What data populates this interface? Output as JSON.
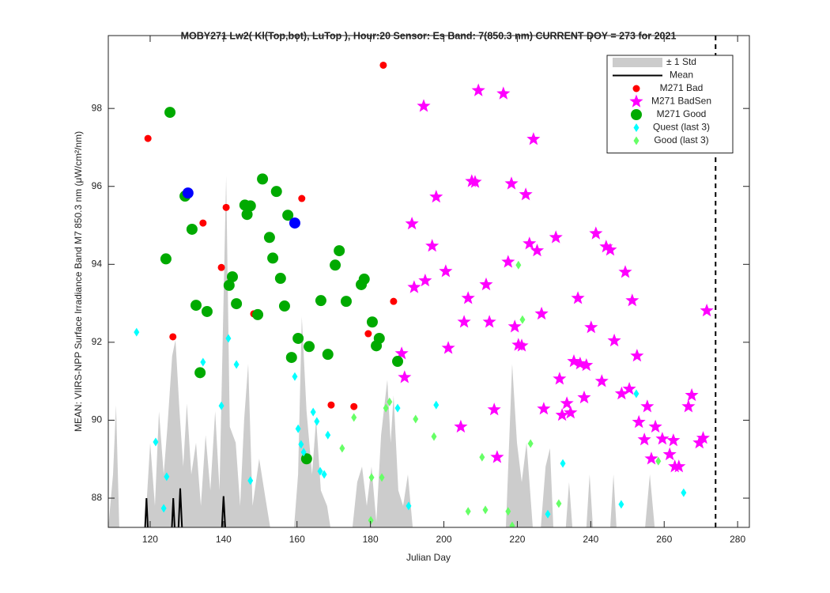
{
  "chart_data": {
    "type": "scatter",
    "title": "MOBY271   Lw2( Kl(Top,bot), LuTop ),   Hour:20 Sensor: Es Band: 7(850.3 nm)   CURRENT DOY = 273 for 2021",
    "x_label": "Julian Day",
    "y_label": "MEAN: VIIRS-NPP Surface Irradiance Band M7 850.3 nm (μW/cm²/nm)",
    "xlim": [
      108.6,
      283.2
    ],
    "ylim": [
      87.25,
      99.87
    ],
    "xticks": [
      120,
      140,
      160,
      180,
      200,
      220,
      240,
      260,
      280
    ],
    "yticks": [
      88,
      90,
      92,
      94,
      96,
      98
    ],
    "vline": 274,
    "legend": "upper right",
    "grid": false,
    "series": [
      {
        "name": "± 1 Std",
        "color": "#cccccc",
        "marker": "area",
        "x": [
          108.6,
          109.9,
          110.7,
          111.6,
          118.5,
          119.1,
          120.0,
          121.3,
          122.4,
          123.7,
          124.7,
          126.0,
          126.9,
          128.0,
          129.0,
          130.0,
          131.2,
          132.5,
          133.8,
          135.1,
          136.4,
          137.7,
          138.9,
          140.7,
          141.7,
          143.3,
          144.5,
          145.6,
          146.7,
          147.9,
          149.7,
          151.4,
          152.7,
          159.2,
          160.3,
          161.3,
          162.6,
          164.1,
          165.2,
          166.5,
          168.2,
          169.1,
          175.1,
          176.4,
          177.7,
          179.0,
          180.3,
          181.6,
          182.9,
          184.6,
          185.5,
          186.3,
          187.6,
          188.9,
          190.2,
          191.5,
          216.9,
          218.6,
          219.9,
          221.2,
          222.5,
          224.2,
          226.4,
          227.7,
          228.9,
          229.8,
          233.2,
          234.1,
          235.0,
          238.8,
          239.7,
          240.6,
          245.3,
          246.2,
          247.0,
          254.8,
          256.1,
          257.4
        ],
        "values": [
          87.25,
          88.61,
          90.39,
          87.25,
          87.25,
          88.0,
          89.42,
          87.8,
          90.23,
          88.61,
          89.83,
          91.65,
          92.06,
          90.23,
          88.81,
          90.43,
          88.61,
          89.42,
          87.8,
          89.62,
          88.2,
          90.23,
          88.2,
          96.27,
          89.83,
          89.42,
          87.8,
          90.03,
          91.45,
          87.8,
          89.01,
          88.0,
          87.25,
          87.25,
          88.61,
          92.66,
          90.23,
          88.61,
          90.03,
          88.2,
          87.8,
          87.25,
          87.25,
          88.41,
          88.81,
          87.8,
          88.81,
          87.39,
          89.62,
          91.04,
          89.42,
          90.64,
          88.2,
          87.8,
          88.61,
          87.25,
          87.25,
          91.45,
          89.42,
          88.41,
          89.42,
          87.25,
          87.25,
          88.81,
          89.28,
          87.25,
          87.25,
          88.41,
          87.25,
          87.25,
          88.61,
          87.25,
          87.25,
          88.61,
          87.25,
          87.25,
          88.61,
          87.25
        ]
      },
      {
        "name": "Mean",
        "color": "#000000",
        "marker": "line",
        "x": [
          118.5,
          119.0,
          119.5,
          null,
          125.8,
          126.3,
          126.8,
          null,
          127.6,
          128.2,
          128.8,
          null,
          139.4,
          140.0,
          140.6
        ],
        "values": [
          87.0,
          88.0,
          87.0,
          null,
          87.0,
          88.0,
          87.0,
          null,
          87.0,
          88.25,
          87.0,
          null,
          87.0,
          88.05,
          87.0
        ]
      },
      {
        "name": "M271 Bad",
        "color": "#ff0000",
        "marker": "dot",
        "x": [
          119.4,
          140.7,
          134.4,
          139.4,
          126.2,
          148.2,
          161.3,
          169.3,
          175.5,
          179.4,
          186.3,
          183.5
        ],
        "values": [
          97.23,
          95.46,
          95.06,
          93.92,
          92.14,
          92.73,
          95.69,
          90.39,
          90.35,
          92.22,
          93.05,
          99.11
        ]
      },
      {
        "name": "M271 BadSen",
        "color": "#ff00ff",
        "marker": "star",
        "x": [
          194.5,
          209.4,
          216.2,
          207.6,
          208.5,
          218.4,
          222.3,
          224.4,
          197.9,
          191.3,
          196.8,
          194.9,
          191.9,
          200.5,
          206.6,
          211.5,
          217.5,
          223.3,
          225.4,
          230.5,
          241.4,
          244.2,
          245.3,
          249.4,
          251.3,
          236.5,
          226.6,
          212.4,
          205.5,
          219.3,
          220.3,
          221.2,
          240.1,
          246.4,
          252.6,
          201.2,
          188.5,
          189.3,
          235.4,
          237.1,
          238.8,
          231.5,
          243.0,
          233.5,
          234.5,
          232.2,
          213.7,
          227.2,
          238.2,
          248.4,
          250.5,
          255.4,
          253.1,
          267.5,
          266.6,
          271.6,
          257.6,
          254.6,
          259.5,
          262.5,
          256.5,
          261.5,
          270.6,
          269.6,
          264.0,
          262.9,
          214.5,
          204.6
        ],
        "values": [
          98.06,
          98.46,
          98.38,
          96.13,
          96.11,
          96.07,
          95.79,
          97.21,
          95.73,
          95.04,
          94.47,
          93.58,
          93.41,
          93.82,
          93.13,
          93.48,
          94.06,
          94.53,
          94.35,
          94.69,
          94.79,
          94.45,
          94.37,
          93.8,
          93.07,
          93.13,
          92.73,
          92.52,
          92.52,
          92.4,
          91.93,
          91.91,
          92.38,
          92.04,
          91.65,
          91.85,
          91.71,
          91.1,
          91.51,
          91.45,
          91.41,
          91.06,
          91.0,
          90.43,
          90.19,
          90.13,
          90.27,
          90.29,
          90.58,
          90.68,
          90.8,
          90.35,
          89.95,
          90.64,
          90.35,
          92.81,
          89.83,
          89.5,
          89.52,
          89.48,
          89.01,
          89.12,
          89.54,
          89.42,
          88.81,
          88.81,
          89.05,
          89.83
        ]
      },
      {
        "name": "M271 Good",
        "color": "#00aa00",
        "marker": "bigdot",
        "x": [
          125.4,
          129.5,
          131.4,
          124.3,
          132.5,
          135.5,
          133.6,
          141.5,
          142.4,
          143.5,
          145.8,
          146.4,
          147.3,
          149.3,
          150.6,
          152.5,
          153.4,
          154.4,
          155.5,
          156.6,
          157.5,
          158.5,
          160.3,
          163.3,
          162.6,
          166.5,
          168.4,
          170.4,
          171.5,
          173.4,
          177.5,
          178.3,
          180.5,
          181.6,
          182.4,
          187.4
        ],
        "values": [
          97.9,
          95.75,
          94.9,
          94.14,
          92.95,
          92.79,
          91.22,
          93.46,
          93.68,
          92.99,
          95.52,
          95.28,
          95.5,
          92.71,
          96.19,
          94.69,
          94.16,
          95.87,
          93.64,
          92.93,
          95.26,
          91.61,
          92.1,
          91.89,
          89.01,
          93.07,
          91.69,
          93.98,
          94.35,
          93.05,
          93.48,
          93.62,
          92.52,
          91.91,
          92.1,
          91.51
        ]
      },
      {
        "name": "Quest (last 3)",
        "color": "#00ffff",
        "marker": "diamond",
        "x": [
          116.3,
          121.5,
          123.7,
          124.5,
          134.4,
          139.4,
          141.3,
          143.5,
          147.3,
          159.4,
          160.3,
          161.1,
          161.8,
          164.4,
          165.4,
          166.3,
          167.4,
          168.4,
          187.4,
          190.4,
          197.9,
          232.4,
          228.3,
          248.3,
          252.4,
          265.3
        ],
        "values": [
          92.26,
          89.44,
          87.74,
          88.55,
          91.49,
          90.37,
          92.1,
          91.43,
          88.45,
          91.12,
          89.78,
          89.38,
          89.18,
          90.21,
          89.97,
          88.69,
          88.61,
          89.62,
          90.31,
          87.8,
          90.39,
          88.89,
          87.59,
          87.84,
          90.68,
          88.14
        ]
      },
      {
        "name": "Good (last 3)",
        "color": "#66ff66",
        "marker": "diamond",
        "x": [
          175.5,
          172.3,
          180.3,
          184.2,
          185.2,
          192.3,
          197.3,
          206.6,
          210.4,
          211.3,
          217.5,
          218.6,
          220.3,
          221.4,
          223.6,
          231.3,
          180.1,
          183.1,
          258.4
        ],
        "values": [
          90.07,
          89.28,
          88.53,
          90.31,
          90.47,
          90.03,
          89.58,
          87.66,
          89.05,
          87.7,
          87.66,
          87.29,
          93.98,
          92.58,
          89.4,
          87.86,
          87.43,
          88.53,
          88.95
        ]
      },
      {
        "color": "#0000ff",
        "marker": "bigdot",
        "x": [
          130.3,
          159.4
        ],
        "values": [
          95.83,
          95.06
        ]
      }
    ]
  }
}
